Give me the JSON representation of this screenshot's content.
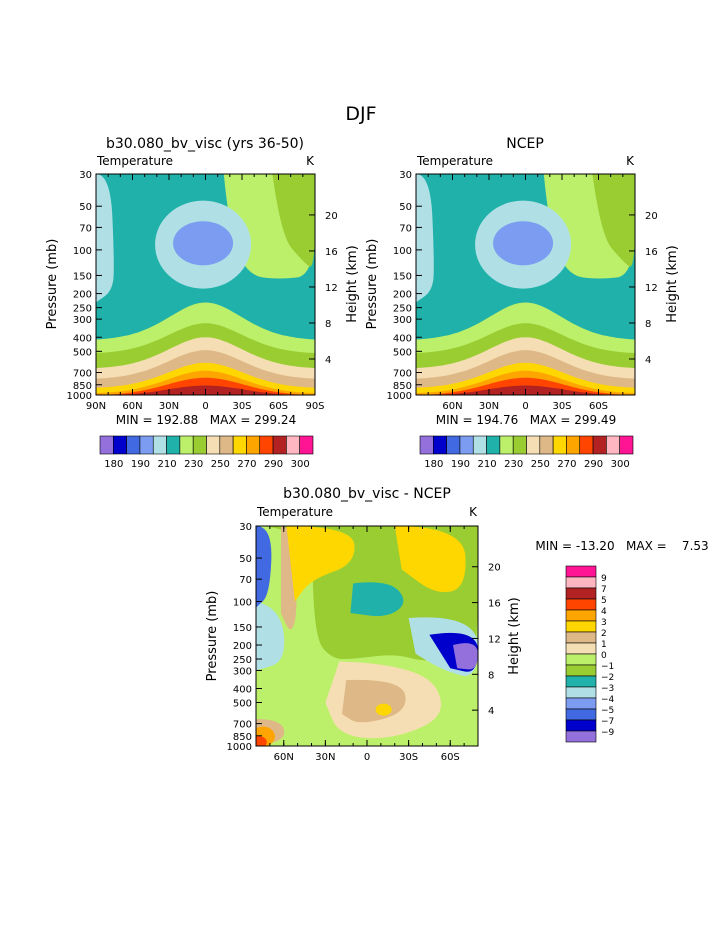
{
  "page_title": "DJF",
  "colors": {
    "palette": [
      "#9370db",
      "#0000cd",
      "#4169e1",
      "#7b9cf0",
      "#b0e0e6",
      "#20b2aa",
      "#bdf06a",
      "#9acd32",
      "#f5deb3",
      "#deb887",
      "#ffd700",
      "#ffa500",
      "#ff4500",
      "#b22222",
      "#ffb6c1",
      "#ff1493"
    ],
    "diff_palette": [
      "#9370db",
      "#0000cd",
      "#4169e1",
      "#7b9cf0",
      "#b0e0e6",
      "#20b2aa",
      "#9acd32",
      "#bdf06a",
      "#f5deb3",
      "#deb887",
      "#ffd700",
      "#ffa500",
      "#ff4500",
      "#b22222",
      "#ffb6c1",
      "#ff1493"
    ]
  },
  "chart_data": [
    {
      "type": "heatmap",
      "title": "b30.080_bv_visc (yrs 36-50)",
      "variable": "Temperature",
      "unit": "K",
      "ylabel": "Pressure (mb)",
      "y2label": "Height (km)",
      "x_ticks": [
        "90N",
        "60N",
        "30N",
        "0",
        "30S",
        "60S",
        "90S"
      ],
      "y_ticks": [
        30,
        50,
        70,
        100,
        150,
        200,
        250,
        300,
        400,
        500,
        700,
        850,
        1000
      ],
      "y2_ticks": [
        20,
        16,
        12,
        8,
        4
      ],
      "stats": "MIN = 192.88   MAX = 299.24",
      "levels": [
        180,
        185,
        190,
        195,
        200,
        210,
        220,
        230,
        240,
        250,
        260,
        270,
        280,
        290,
        300
      ],
      "colorbar_labels": [
        "180",
        "190",
        "210",
        "230",
        "250",
        "270",
        "290",
        "300"
      ]
    },
    {
      "type": "heatmap",
      "title": "NCEP",
      "variable": "Temperature",
      "unit": "K",
      "ylabel": "Pressure (mb)",
      "y2label": "Height (km)",
      "x_ticks": [
        "60N",
        "30N",
        "0",
        "30S",
        "60S"
      ],
      "y_ticks": [
        30,
        50,
        70,
        100,
        150,
        200,
        250,
        300,
        400,
        500,
        700,
        850,
        1000
      ],
      "y2_ticks": [
        20,
        16,
        12,
        8,
        4
      ],
      "stats": "MIN = 194.76   MAX = 299.49",
      "levels": [
        180,
        185,
        190,
        195,
        200,
        210,
        220,
        230,
        240,
        250,
        260,
        270,
        280,
        290,
        300
      ],
      "colorbar_labels": [
        "180",
        "190",
        "210",
        "230",
        "250",
        "270",
        "290",
        "300"
      ]
    },
    {
      "type": "heatmap",
      "title": "b30.080_bv_visc - NCEP",
      "variable": "Temperature",
      "unit": "K",
      "ylabel": "Pressure (mb)",
      "y2label": "Height (km)",
      "x_ticks": [
        "60N",
        "30N",
        "0",
        "30S",
        "60S"
      ],
      "y_ticks": [
        30,
        50,
        70,
        100,
        150,
        200,
        250,
        300,
        400,
        500,
        700,
        850,
        1000
      ],
      "y2_ticks": [
        20,
        16,
        12,
        8,
        4
      ],
      "stats": "MIN = -13.20   MAX =    7.53",
      "levels": [
        -9,
        -7,
        -5,
        -4,
        -3,
        -2,
        -1,
        0,
        1,
        2,
        3,
        4,
        5,
        7,
        9
      ],
      "colorbar_labels": [
        "9",
        "7",
        "5",
        "4",
        "3",
        "2",
        "1",
        "0",
        "−1",
        "−2",
        "−3",
        "−4",
        "−5",
        "−7",
        "−9"
      ]
    }
  ]
}
